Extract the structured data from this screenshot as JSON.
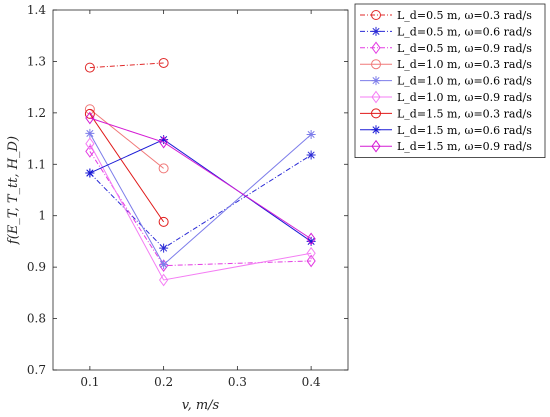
{
  "chart_data": {
    "type": "line",
    "xlabel": "v, m/s",
    "ylabel": "f(E_T, T_tt, H_D)",
    "xlim": [
      0.05,
      0.45
    ],
    "ylim": [
      0.7,
      1.4
    ],
    "xticks": [
      0.1,
      0.2,
      0.3,
      0.4
    ],
    "yticks": [
      0.7,
      0.8,
      0.9,
      1.0,
      1.1,
      1.2,
      1.3,
      1.4
    ],
    "xtick_labels": [
      "0.1",
      "0.2",
      "0.3",
      "0.4"
    ],
    "ytick_labels": [
      "0.7",
      "0.8",
      "0.9",
      "1",
      "1.1",
      "1.2",
      "1.3",
      "1.4"
    ],
    "grid": false,
    "legend_position": "outside top-right",
    "series": [
      {
        "name": "L_d=0.5 m, ω=0.3 rad/s",
        "x": [
          0.1,
          0.2
        ],
        "y": [
          1.288,
          1.297
        ],
        "color": "#e02a2a",
        "dash": "dashdot",
        "marker": "circle"
      },
      {
        "name": "L_d=0.5 m, ω=0.6 rad/s",
        "x": [
          0.1,
          0.2,
          0.4
        ],
        "y": [
          1.083,
          0.937,
          1.118
        ],
        "color": "#2b2bd6",
        "dash": "dashdot",
        "marker": "star"
      },
      {
        "name": "L_d=0.5 m, ω=0.9 rad/s",
        "x": [
          0.1,
          0.2,
          0.4
        ],
        "y": [
          1.125,
          0.903,
          0.912
        ],
        "color": "#e33ce3",
        "dash": "dashdot",
        "marker": "diamond"
      },
      {
        "name": "L_d=1.0 m, ω=0.3 rad/s",
        "x": [
          0.1,
          0.2
        ],
        "y": [
          1.207,
          1.092
        ],
        "color": "#f07878",
        "dash": "solid",
        "marker": "circle"
      },
      {
        "name": "L_d=1.0 m, ω=0.6 rad/s",
        "x": [
          0.1,
          0.2,
          0.4
        ],
        "y": [
          1.16,
          0.905,
          1.158
        ],
        "color": "#7d7dea",
        "dash": "solid",
        "marker": "star"
      },
      {
        "name": "L_d=1.0 m, ω=0.9 rad/s",
        "x": [
          0.1,
          0.2,
          0.4
        ],
        "y": [
          1.14,
          0.875,
          0.927
        ],
        "color": "#f47df4",
        "dash": "solid",
        "marker": "diamond"
      },
      {
        "name": "L_d=1.5 m, ω=0.3 rad/s",
        "x": [
          0.1,
          0.2
        ],
        "y": [
          1.198,
          0.988
        ],
        "color": "#e01818",
        "dash": "solid",
        "marker": "circle"
      },
      {
        "name": "L_d=1.5 m, ω=0.6 rad/s",
        "x": [
          0.1,
          0.2,
          0.4
        ],
        "y": [
          1.083,
          1.148,
          0.95
        ],
        "color": "#1a1ad6",
        "dash": "solid",
        "marker": "star"
      },
      {
        "name": "L_d=1.5 m, ω=0.9 rad/s",
        "x": [
          0.1,
          0.2,
          0.4
        ],
        "y": [
          1.19,
          1.143,
          0.955
        ],
        "color": "#d41bd4",
        "dash": "solid",
        "marker": "diamond"
      }
    ]
  }
}
